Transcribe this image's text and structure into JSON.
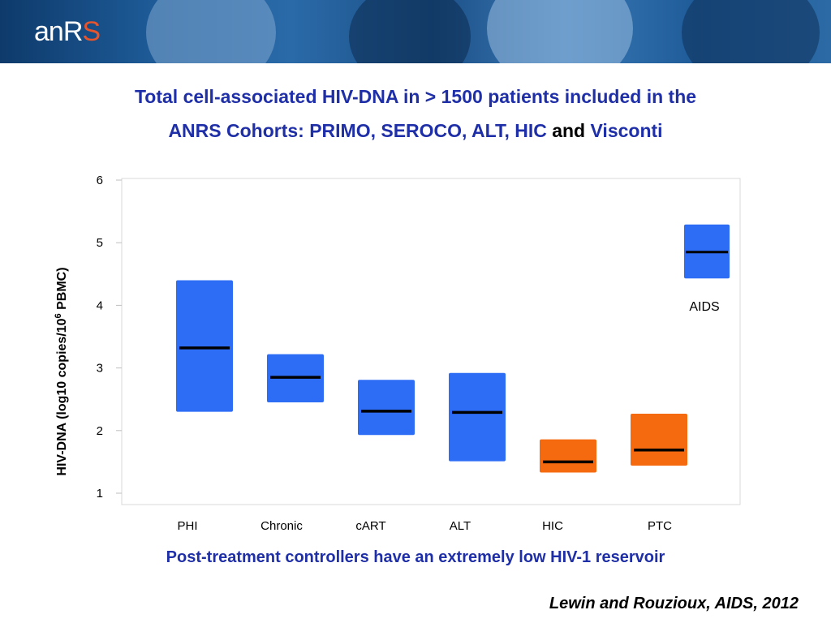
{
  "header": {
    "logo_text_main": "anR",
    "logo_text_accent": "S"
  },
  "title": {
    "line1": "Total cell-associated HIV-DNA in > 1500 patients included in the",
    "line2_part1": "ANRS  Cohorts: PRIMO, SEROCO, ALT, HIC",
    "line2_and": "and",
    "line2_part2": "Visconti"
  },
  "caption": "Post-treatment controllers have an extremely low HIV-1 reservoir",
  "citation": "Lewin and Rouzioux, AIDS, 2012",
  "colors": {
    "blue": "#2d6df6",
    "orange": "#f56a0e",
    "title": "#1f2fa8",
    "median": "#000000"
  },
  "chart_data": {
    "type": "box",
    "ylabel": "HIV-DNA (log10 copies/10^6 PBMC)",
    "ylim": [
      1,
      6
    ],
    "yticks": [
      1,
      2,
      3,
      4,
      5,
      6
    ],
    "grid": false,
    "categories": [
      "PHI",
      "Chronic",
      "cART",
      "ALT",
      "HIC",
      "PTC"
    ],
    "boxes": [
      {
        "category": "PHI",
        "low": 2.3,
        "high": 4.4,
        "median": 3.32,
        "color": "blue"
      },
      {
        "category": "Chronic",
        "low": 2.45,
        "high": 3.22,
        "median": 2.85,
        "color": "blue"
      },
      {
        "category": "cART",
        "low": 1.93,
        "high": 2.81,
        "median": 2.31,
        "color": "blue"
      },
      {
        "category": "ALT",
        "low": 1.51,
        "high": 2.92,
        "median": 2.29,
        "color": "blue"
      },
      {
        "category": "HIC",
        "low": 1.33,
        "high": 1.86,
        "median": 1.5,
        "color": "orange"
      },
      {
        "category": "PTC",
        "low": 1.44,
        "high": 2.27,
        "median": 1.69,
        "color": "orange"
      }
    ],
    "extra_box": {
      "label": "AIDS",
      "low": 4.43,
      "high": 5.29,
      "median": 4.85,
      "color": "blue"
    }
  }
}
